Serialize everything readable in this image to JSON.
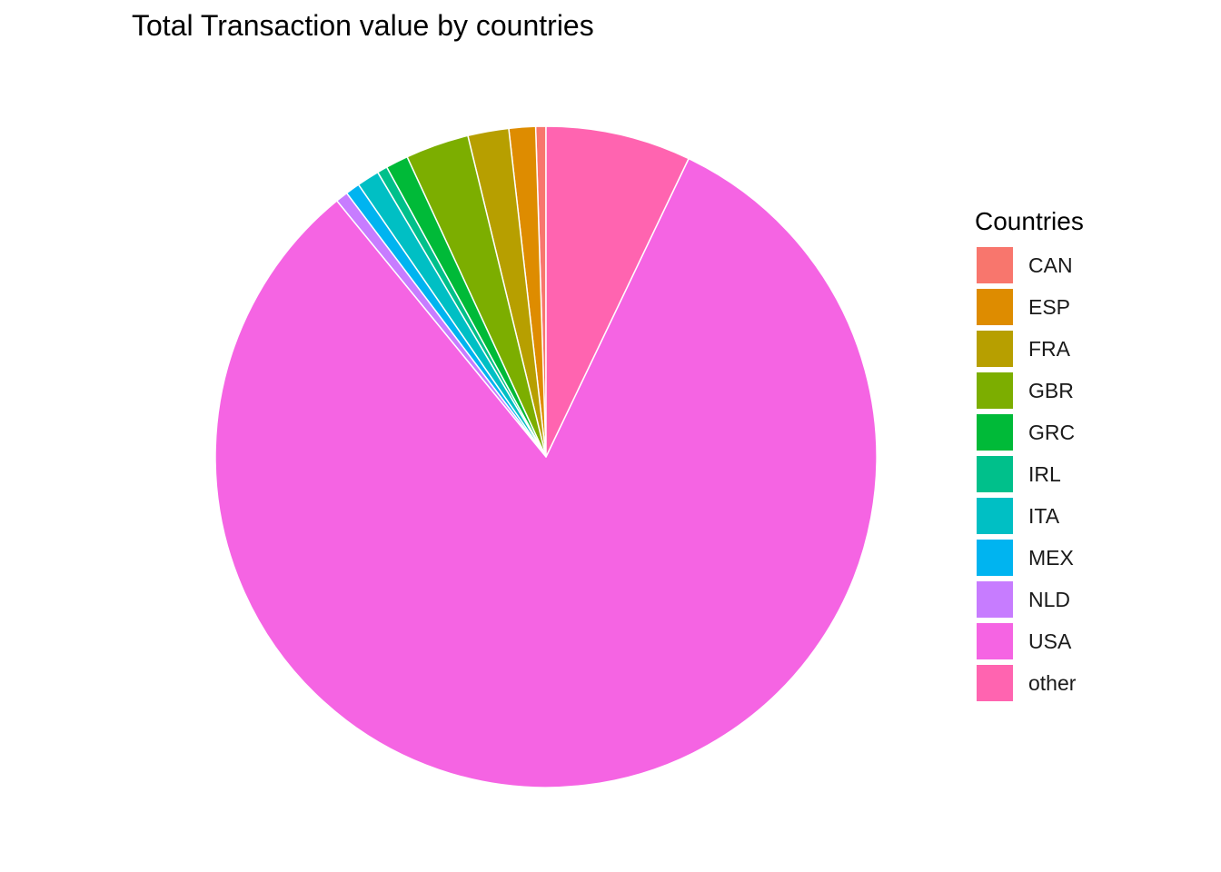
{
  "chart_data": {
    "type": "pie",
    "title": "Total Transaction value by countries",
    "legend": {
      "title": "Countries",
      "placement": "right"
    },
    "start_angle": "12 o'clock",
    "direction": "counter-clockwise",
    "slices": [
      {
        "name": "CAN",
        "value": 0.5,
        "color": "#F8766D"
      },
      {
        "name": "ESP",
        "value": 1.3,
        "color": "#DE8C00"
      },
      {
        "name": "FRA",
        "value": 2.0,
        "color": "#B79F00"
      },
      {
        "name": "GBR",
        "value": 3.1,
        "color": "#7CAE00"
      },
      {
        "name": "GRC",
        "value": 1.1,
        "color": "#00BA38"
      },
      {
        "name": "IRL",
        "value": 0.5,
        "color": "#00C08B"
      },
      {
        "name": "ITA",
        "value": 1.1,
        "color": "#00BFC4"
      },
      {
        "name": "MEX",
        "value": 0.7,
        "color": "#00B4F0"
      },
      {
        "name": "NLD",
        "value": 0.6,
        "color": "#C77CFF"
      },
      {
        "name": "USA",
        "value": 82.0,
        "color": "#F564E3"
      },
      {
        "name": "other",
        "value": 7.1,
        "color": "#FF64B0"
      }
    ]
  }
}
